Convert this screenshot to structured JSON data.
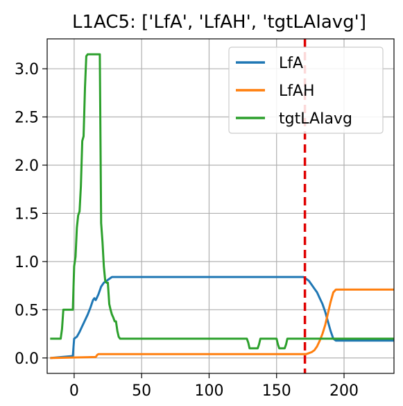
{
  "chart_data": {
    "type": "line",
    "title": "L1AC5: ['LfA', 'LfAH', 'tgtLAIavg']",
    "xlabel": "",
    "ylabel": "",
    "xlim": [
      -20,
      237
    ],
    "ylim": [
      -0.16,
      3.31
    ],
    "xticks": [
      0,
      50,
      100,
      150,
      200
    ],
    "yticks": [
      0.0,
      0.5,
      1.0,
      1.5,
      2.0,
      2.5,
      3.0
    ],
    "xtick_labels": [
      "0",
      "50",
      "100",
      "150",
      "200"
    ],
    "ytick_labels": [
      "0.0",
      "0.5",
      "1.0",
      "1.5",
      "2.0",
      "2.5",
      "3.0"
    ],
    "grid": true,
    "legend_position": "upper right",
    "vline": {
      "x": 171,
      "color": "#e00000",
      "style": "dashed"
    },
    "series": [
      {
        "name": "LfA",
        "color": "#1f77b4",
        "x": [
          -17,
          -1,
          0,
          2,
          4,
          6,
          8,
          10,
          12,
          14,
          15,
          16,
          17,
          18,
          20,
          22,
          24,
          26,
          28,
          30,
          32,
          167,
          170,
          172,
          174,
          176,
          178,
          180,
          182,
          184,
          186,
          188,
          190,
          192,
          194,
          196,
          236
        ],
        "y": [
          0.0,
          0.02,
          0.2,
          0.22,
          0.27,
          0.33,
          0.39,
          0.45,
          0.52,
          0.6,
          0.62,
          0.6,
          0.63,
          0.66,
          0.74,
          0.78,
          0.8,
          0.82,
          0.84,
          0.84,
          0.84,
          0.84,
          0.84,
          0.82,
          0.8,
          0.76,
          0.72,
          0.68,
          0.62,
          0.56,
          0.48,
          0.38,
          0.28,
          0.2,
          0.18,
          0.18,
          0.18
        ]
      },
      {
        "name": "LfAH",
        "color": "#ff7f0e",
        "x": [
          -17,
          16,
          17,
          18,
          20,
          22,
          24,
          170,
          172,
          174,
          176,
          178,
          180,
          182,
          184,
          186,
          188,
          190,
          192,
          194,
          196,
          236
        ],
        "y": [
          0.0,
          0.01,
          0.03,
          0.04,
          0.04,
          0.04,
          0.04,
          0.04,
          0.04,
          0.05,
          0.06,
          0.08,
          0.12,
          0.18,
          0.25,
          0.34,
          0.46,
          0.58,
          0.68,
          0.71,
          0.71,
          0.71
        ]
      },
      {
        "name": "tgtLAIavg",
        "color": "#2ca02c",
        "x": [
          -17,
          -10,
          -9,
          -8,
          -1,
          0,
          1,
          2,
          3,
          4,
          5,
          6,
          7,
          8,
          9,
          10,
          19,
          20,
          21,
          22,
          23,
          24,
          25,
          26,
          27,
          28,
          29,
          30,
          31,
          32,
          33,
          34,
          35,
          128,
          129,
          130,
          132,
          133,
          136,
          137,
          138,
          139,
          150,
          151,
          152,
          156,
          157,
          158,
          159,
          171,
          172,
          236
        ],
        "y": [
          0.2,
          0.2,
          0.3,
          0.5,
          0.5,
          0.95,
          1.05,
          1.35,
          1.48,
          1.52,
          1.78,
          2.25,
          2.3,
          2.8,
          3.13,
          3.15,
          3.15,
          1.4,
          1.2,
          0.95,
          0.8,
          0.78,
          0.78,
          0.56,
          0.5,
          0.45,
          0.42,
          0.38,
          0.38,
          0.28,
          0.22,
          0.2,
          0.2,
          0.2,
          0.16,
          0.1,
          0.1,
          0.1,
          0.1,
          0.14,
          0.2,
          0.2,
          0.2,
          0.14,
          0.1,
          0.1,
          0.14,
          0.2,
          0.2,
          0.2,
          0.2,
          0.2
        ]
      }
    ]
  }
}
